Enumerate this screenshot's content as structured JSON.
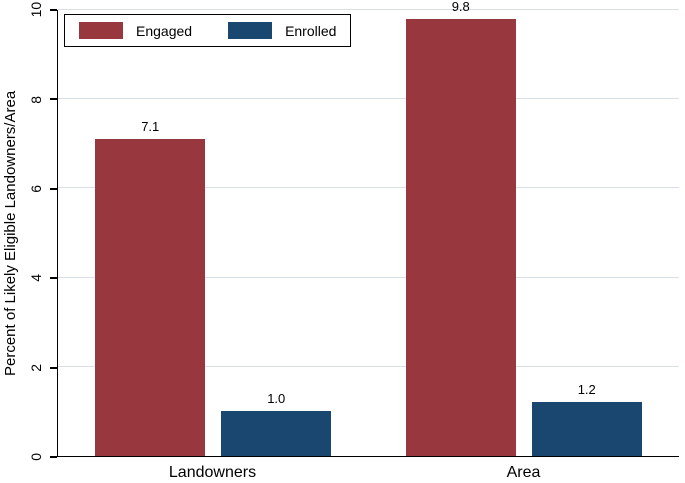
{
  "chart_data": {
    "type": "bar",
    "categories": [
      "Landowners",
      "Area"
    ],
    "series": [
      {
        "name": "Engaged",
        "color": "#98383E",
        "values": [
          7.1,
          9.8
        ],
        "labels": [
          "7.1",
          "9.8"
        ]
      },
      {
        "name": "Enrolled",
        "color": "#1A476F",
        "values": [
          1.0,
          1.2
        ],
        "labels": [
          "1.0",
          "1.2"
        ]
      }
    ],
    "title": "",
    "xlabel": "",
    "ylabel": "Percent of Likely Eligible Landowners/Area",
    "yticks": [
      0,
      2,
      4,
      6,
      8,
      10
    ],
    "ylim": [
      0,
      10
    ],
    "grid": true,
    "legend_position": "top-left",
    "colors": {
      "axis": "#000000",
      "gridline": "#d8dfe6",
      "background": "#ffffff"
    }
  }
}
